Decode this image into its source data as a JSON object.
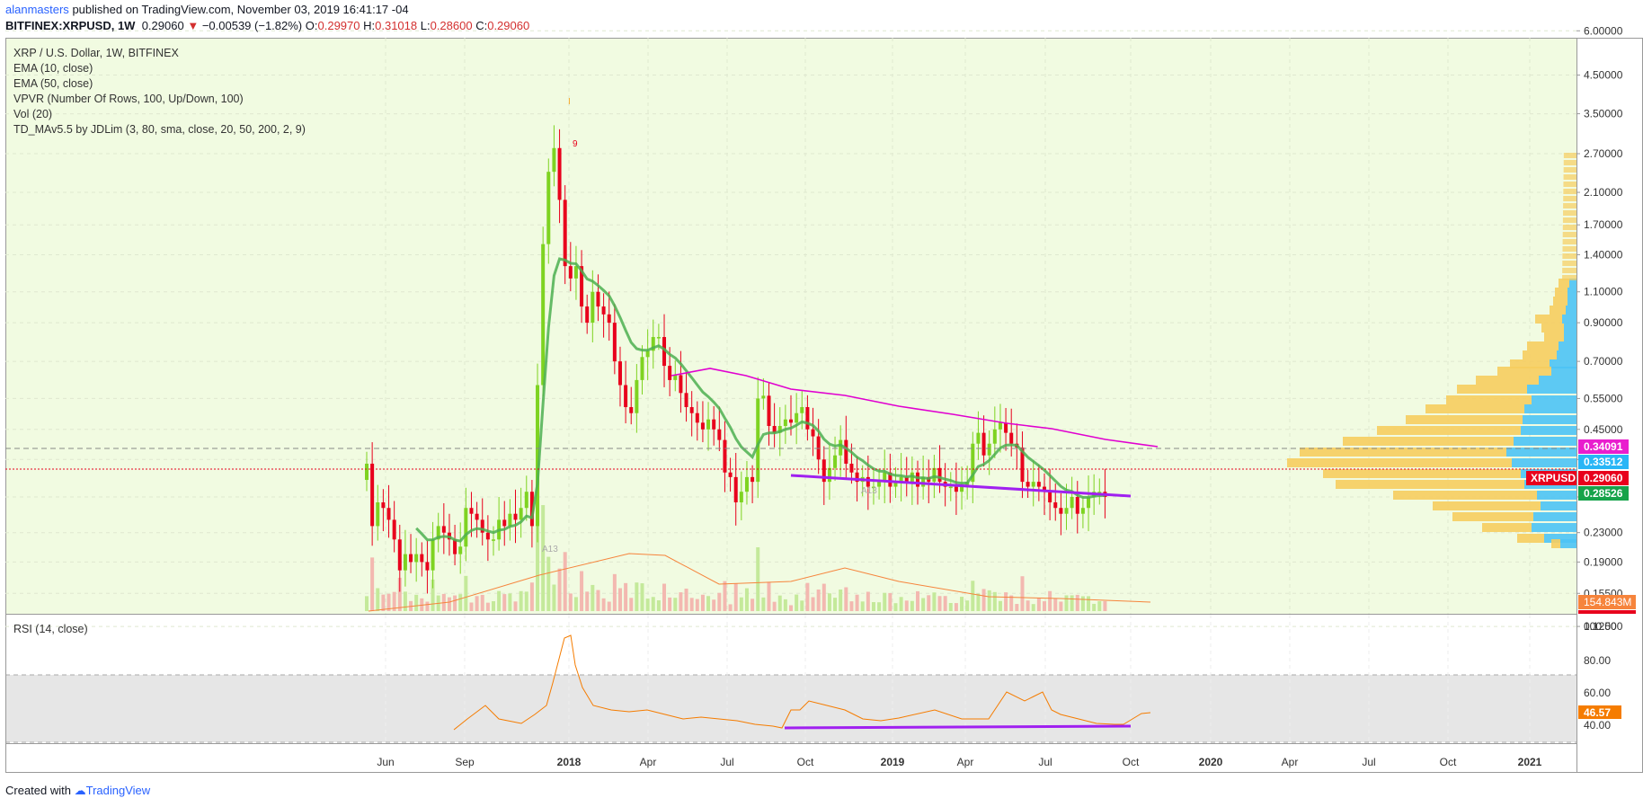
{
  "header": {
    "author": "alanmasters",
    "published": "published on TradingView.com, November 03, 2019 16:41:17 -04",
    "symbol": "BITFINEX:XRPUSD, 1W",
    "last": "0.29060",
    "change": "−0.00539 (−1.82%)",
    "o_label": "O:",
    "o": "0.29970",
    "h_label": "H:",
    "h": "0.31018",
    "l_label": "L:",
    "l": "0.28600",
    "c_label": "C:",
    "c": "0.29060"
  },
  "legend": [
    "XRP / U.S. Dollar, 1W, BITFINEX",
    "EMA (10, close)",
    "EMA (50, close)",
    "VPVR (Number Of Rows, 100, Up/Down, 100)",
    "Vol (20)",
    "TD_MAv5.5 by JDLim (3, 80, sma, close, 20, 50, 200, 2, 9)"
  ],
  "rsi_label": "RSI (14, close)",
  "footer": {
    "created": "Created with",
    "brand": "TradingView"
  },
  "colors": {
    "background": "#f1fbe1",
    "up": "#7ed321",
    "down": "#e8001c",
    "ema10": "#4caf50",
    "ema50": "#e000d0",
    "trend": "#a020f0",
    "rsi": "#f57c00",
    "rsi_band": "#e6e6e6",
    "vp_up": "#4cc3f5",
    "vp_down": "#f6cd5f"
  },
  "chart_data": {
    "type": "candlestick",
    "scale": "log",
    "y_ticks": [
      "6.00000",
      "4.50000",
      "3.50000",
      "2.70000",
      "2.10000",
      "1.70000",
      "1.40000",
      "1.10000",
      "0.90000",
      "0.70000",
      "0.55000",
      "0.45000",
      "0.37000",
      "0.29000",
      "0.23000",
      "0.19000",
      "0.15500",
      "0.12500"
    ],
    "x_ticks": [
      "Jun",
      "Sep",
      "2018",
      "Apr",
      "Jul",
      "Oct",
      "2019",
      "Apr",
      "Jul",
      "Oct",
      "2020",
      "Apr",
      "Jul",
      "Oct",
      "2021"
    ],
    "price_labels": [
      {
        "value": "0.34091",
        "color": "#e91ece"
      },
      {
        "value": "0.33512",
        "color": "#29b6f6"
      },
      {
        "value": "0.29060",
        "color": "#e8001c",
        "name": "XRPUSD"
      },
      {
        "value": "0.28526",
        "color": "#16a34a"
      }
    ],
    "volume_label": "154.843M",
    "rsi": {
      "ticks": [
        "100.00",
        "80.00",
        "60.00",
        "40.00"
      ],
      "band": [
        30,
        70
      ],
      "last": "46.57"
    },
    "annotations": [
      "I",
      "9",
      "A13",
      "A13"
    ],
    "weekly_close": [
      0.36,
      0.24,
      0.28,
      0.27,
      0.25,
      0.22,
      0.18,
      0.2,
      0.19,
      0.2,
      0.19,
      0.18,
      0.22,
      0.24,
      0.23,
      0.22,
      0.2,
      0.21,
      0.27,
      0.26,
      0.25,
      0.23,
      0.22,
      0.22,
      0.25,
      0.24,
      0.26,
      0.25,
      0.27,
      0.3,
      0.24,
      0.6,
      1.5,
      2.4,
      2.8,
      2.0,
      1.3,
      1.2,
      1.3,
      1.0,
      0.9,
      1.1,
      1.0,
      0.95,
      0.9,
      0.7,
      0.6,
      0.52,
      0.5,
      0.62,
      0.72,
      0.75,
      0.82,
      0.82,
      0.68,
      0.62,
      0.64,
      0.57,
      0.52,
      0.5,
      0.47,
      0.45,
      0.48,
      0.45,
      0.42,
      0.34,
      0.33,
      0.28,
      0.3,
      0.33,
      0.32,
      0.55,
      0.56,
      0.46,
      0.44,
      0.46,
      0.48,
      0.47,
      0.5,
      0.52,
      0.45,
      0.43,
      0.37,
      0.32,
      0.35,
      0.38,
      0.42,
      0.36,
      0.34,
      0.32,
      0.33,
      0.31,
      0.31,
      0.32,
      0.34,
      0.31,
      0.32,
      0.33,
      0.32,
      0.34,
      0.31,
      0.33,
      0.32,
      0.35,
      0.32,
      0.31,
      0.31,
      0.3,
      0.31,
      0.32,
      0.41,
      0.44,
      0.38,
      0.41,
      0.45,
      0.47,
      0.44,
      0.41,
      0.4,
      0.32,
      0.31,
      0.32,
      0.31,
      0.3,
      0.28,
      0.27,
      0.26,
      0.27,
      0.29,
      0.26,
      0.27,
      0.29,
      0.3,
      0.3,
      0.29
    ]
  }
}
